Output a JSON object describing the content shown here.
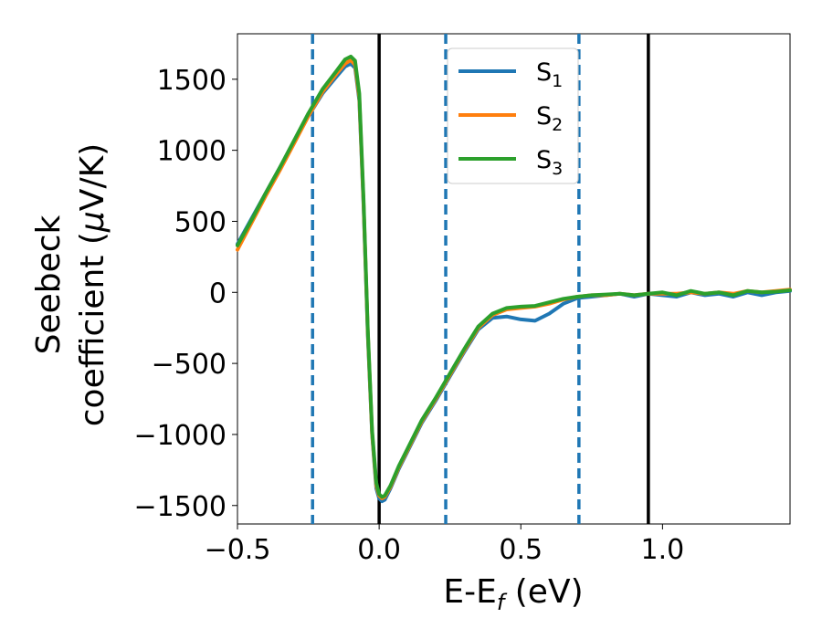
{
  "chart_data": {
    "type": "line",
    "title": "",
    "xlabel": "E-E",
    "xlabel_sub": "f",
    "xlabel_unit": " (eV)",
    "ylabel_line1": "Seebeck",
    "ylabel_line2_prefix": "coefficient  (",
    "ylabel_mu": "μ",
    "ylabel_unit": "V/K)",
    "xlim": [
      -0.5,
      1.45
    ],
    "ylim": [
      -1630,
      1820
    ],
    "xticks": [
      -0.5,
      0.0,
      0.5,
      1.0
    ],
    "xtick_labels": [
      "−0.5",
      "0.0",
      "0.5",
      "1.0"
    ],
    "yticks": [
      1500,
      1000,
      500,
      0,
      -500,
      -1000,
      -1500
    ],
    "ytick_labels": [
      "1500",
      "1000",
      "500",
      "0",
      "−500",
      "−1000",
      "−1500"
    ],
    "grid": false,
    "legend_position": "top-center",
    "vlines_solid": [
      0.0,
      0.95
    ],
    "vlines_dashed": [
      -0.235,
      0.235,
      0.705
    ],
    "vline_solid_color": "#000000",
    "vline_dashed_color": "#1f77b4",
    "series": [
      {
        "name": "S",
        "subscript": "1",
        "color": "#1f77b4",
        "x": [
          -0.5,
          -0.45,
          -0.4,
          -0.35,
          -0.3,
          -0.25,
          -0.2,
          -0.15,
          -0.12,
          -0.1,
          -0.085,
          -0.07,
          -0.055,
          -0.04,
          -0.025,
          -0.01,
          0.0,
          0.01,
          0.02,
          0.04,
          0.07,
          0.1,
          0.15,
          0.2,
          0.25,
          0.3,
          0.35,
          0.4,
          0.45,
          0.5,
          0.55,
          0.6,
          0.65,
          0.7,
          0.75,
          0.8,
          0.85,
          0.9,
          0.95,
          1.0,
          1.05,
          1.1,
          1.15,
          1.2,
          1.25,
          1.3,
          1.35,
          1.4,
          1.45
        ],
        "y": [
          340,
          520,
          700,
          880,
          1060,
          1240,
          1400,
          1520,
          1590,
          1610,
          1580,
          1350,
          600,
          -300,
          -1000,
          -1380,
          -1450,
          -1470,
          -1460,
          -1380,
          -1240,
          -1120,
          -920,
          -760,
          -590,
          -420,
          -260,
          -180,
          -170,
          -190,
          -200,
          -150,
          -80,
          -40,
          -30,
          -20,
          -10,
          -30,
          -10,
          -20,
          -30,
          0,
          -20,
          -10,
          -30,
          0,
          -20,
          0,
          10
        ]
      },
      {
        "name": "S",
        "subscript": "2",
        "color": "#ff7f0e",
        "x": [
          -0.5,
          -0.45,
          -0.4,
          -0.35,
          -0.3,
          -0.25,
          -0.2,
          -0.15,
          -0.12,
          -0.1,
          -0.085,
          -0.07,
          -0.055,
          -0.04,
          -0.025,
          -0.01,
          0.0,
          0.01,
          0.02,
          0.04,
          0.07,
          0.1,
          0.15,
          0.2,
          0.25,
          0.3,
          0.35,
          0.4,
          0.45,
          0.5,
          0.55,
          0.6,
          0.65,
          0.7,
          0.75,
          0.8,
          0.85,
          0.9,
          0.95,
          1.0,
          1.05,
          1.1,
          1.15,
          1.2,
          1.25,
          1.3,
          1.35,
          1.4,
          1.45
        ],
        "y": [
          300,
          490,
          680,
          860,
          1050,
          1240,
          1410,
          1540,
          1610,
          1635,
          1600,
          1370,
          620,
          -280,
          -990,
          -1360,
          -1430,
          -1450,
          -1440,
          -1370,
          -1230,
          -1110,
          -910,
          -750,
          -580,
          -410,
          -250,
          -160,
          -120,
          -110,
          -100,
          -80,
          -50,
          -30,
          -20,
          -20,
          -10,
          -20,
          -10,
          -10,
          -10,
          0,
          -10,
          0,
          -10,
          10,
          0,
          10,
          20
        ]
      },
      {
        "name": "S",
        "subscript": "3",
        "color": "#2ca02c",
        "x": [
          -0.5,
          -0.45,
          -0.4,
          -0.35,
          -0.3,
          -0.25,
          -0.2,
          -0.15,
          -0.12,
          -0.1,
          -0.085,
          -0.07,
          -0.055,
          -0.04,
          -0.025,
          -0.01,
          0.0,
          0.01,
          0.02,
          0.04,
          0.07,
          0.1,
          0.15,
          0.2,
          0.25,
          0.3,
          0.35,
          0.4,
          0.45,
          0.5,
          0.55,
          0.6,
          0.65,
          0.7,
          0.75,
          0.8,
          0.85,
          0.9,
          0.95,
          1.0,
          1.05,
          1.1,
          1.15,
          1.2,
          1.25,
          1.3,
          1.35,
          1.4,
          1.45
        ],
        "y": [
          330,
          510,
          700,
          880,
          1070,
          1260,
          1430,
          1560,
          1640,
          1660,
          1630,
          1400,
          650,
          -260,
          -970,
          -1340,
          -1420,
          -1440,
          -1430,
          -1360,
          -1220,
          -1100,
          -900,
          -740,
          -570,
          -400,
          -240,
          -150,
          -110,
          -100,
          -95,
          -70,
          -45,
          -30,
          -20,
          -15,
          -10,
          -20,
          -10,
          0,
          -20,
          10,
          -10,
          0,
          -20,
          10,
          0,
          5,
          15
        ]
      }
    ]
  }
}
